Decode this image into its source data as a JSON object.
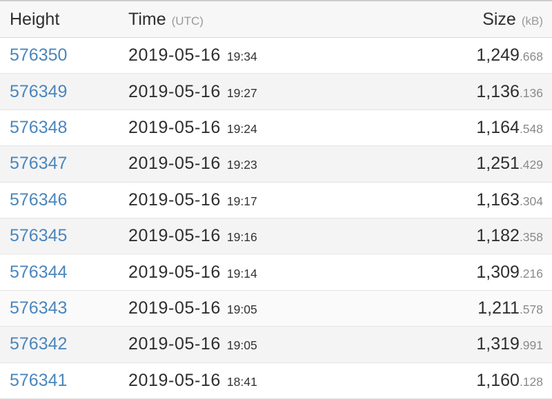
{
  "table": {
    "header": {
      "height_label": "Height",
      "time_label": "Time",
      "time_unit": "(UTC)",
      "size_label": "Size",
      "size_unit": "(kB)"
    },
    "rows": [
      {
        "height": "576350",
        "date": "2019-05-16",
        "time": "19:34",
        "size_int": "1,249",
        "size_frac": ".668"
      },
      {
        "height": "576349",
        "date": "2019-05-16",
        "time": "19:27",
        "size_int": "1,136",
        "size_frac": ".136"
      },
      {
        "height": "576348",
        "date": "2019-05-16",
        "time": "19:24",
        "size_int": "1,164",
        "size_frac": ".548"
      },
      {
        "height": "576347",
        "date": "2019-05-16",
        "time": "19:23",
        "size_int": "1,251",
        "size_frac": ".429"
      },
      {
        "height": "576346",
        "date": "2019-05-16",
        "time": "19:17",
        "size_int": "1,163",
        "size_frac": ".304"
      },
      {
        "height": "576345",
        "date": "2019-05-16",
        "time": "19:16",
        "size_int": "1,182",
        "size_frac": ".358"
      },
      {
        "height": "576344",
        "date": "2019-05-16",
        "time": "19:14",
        "size_int": "1,309",
        "size_frac": ".216"
      },
      {
        "height": "576343",
        "date": "2019-05-16",
        "time": "19:05",
        "size_int": "1,211",
        "size_frac": ".578"
      },
      {
        "height": "576342",
        "date": "2019-05-16",
        "time": "19:05",
        "size_int": "1,319",
        "size_frac": ".991"
      },
      {
        "height": "576341",
        "date": "2019-05-16",
        "time": "18:41",
        "size_int": "1,160",
        "size_frac": ".128"
      }
    ]
  },
  "colors": {
    "link_blue": "#4a86bd",
    "header_bg": "#f7f7f7",
    "stripe_bg": "#f4f4f4",
    "row_border": "#e4e4e4",
    "unit_gray": "#999999",
    "frac_gray": "#8a8a8a",
    "text_dark": "#2e2e2e"
  }
}
